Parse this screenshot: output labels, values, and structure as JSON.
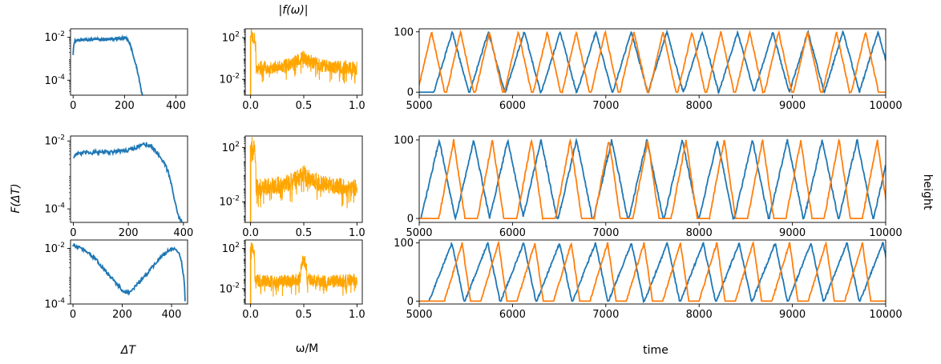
{
  "labels": {
    "col1_ylabel": "F(ΔT)",
    "col1_xlabel": "ΔT",
    "col2_title": "|f(ω)|",
    "col2_xlabel": "ω/M",
    "col3_xlabel": "time",
    "col3_ylabel": "height"
  },
  "colors": {
    "blue": "#1f77b4",
    "orange": "#ffa500",
    "orange2": "#ff7f0e"
  },
  "chart_data": [
    {
      "type": "line",
      "row": 0,
      "col": 0,
      "yscale": "log",
      "xlim": [
        -10,
        445
      ],
      "ylim": [
        2e-05,
        0.025
      ],
      "xticks": [
        0,
        200,
        400
      ],
      "xtick_labels": [
        "0",
        "200",
        "400"
      ],
      "yticks": [
        0.0001,
        0.01
      ],
      "ytick_labels": [
        "10^-4",
        "10^-2"
      ],
      "x": [
        0,
        5,
        20,
        50,
        100,
        150,
        180,
        200,
        210,
        220,
        230,
        240,
        250,
        258,
        265,
        270
      ],
      "y": [
        0.0016,
        0.0065,
        0.0075,
        0.0078,
        0.008,
        0.0083,
        0.009,
        0.0095,
        0.008,
        0.005,
        0.002,
        0.0007,
        0.00025,
        8e-05,
        3e-05,
        2e-05
      ]
    },
    {
      "type": "line",
      "row": 0,
      "col": 1,
      "yscale": "log",
      "spectrum": true,
      "xlim": [
        -0.05,
        1.05
      ],
      "ylim": [
        0.0003,
        700
      ],
      "xticks": [
        0,
        0.5,
        1
      ],
      "xtick_labels": [
        "0.0",
        "0.5",
        "1.0"
      ],
      "yticks": [
        0.01,
        100
      ],
      "ytick_labels": [
        "10^-2",
        "10^2"
      ],
      "x": [
        0,
        0.05,
        0.15,
        0.25,
        0.35,
        0.42,
        0.47,
        0.5,
        0.53,
        0.58,
        0.65,
        0.75,
        0.85,
        0.95,
        1.0
      ],
      "y": [
        150,
        0.08,
        0.09,
        0.1,
        0.15,
        0.3,
        0.5,
        0.9,
        0.5,
        0.3,
        0.15,
        0.1,
        0.09,
        0.08,
        0.08
      ]
    },
    {
      "type": "line",
      "row": 0,
      "col": 2,
      "xlim": [
        5000,
        10000
      ],
      "ylim": [
        -5,
        105
      ],
      "xticks": [
        5000,
        6000,
        7000,
        8000,
        9000,
        10000
      ],
      "xtick_labels": [
        "5000",
        "6000",
        "7000",
        "8000",
        "9000",
        "10000"
      ],
      "yticks": [
        0,
        100
      ],
      "ytick_labels": [
        "0",
        "100"
      ],
      "series": [
        {
          "color": "blue",
          "peaks": [
            5356,
            5741,
            6126,
            6510,
            6893,
            7274,
            7655,
            8034,
            8413,
            8790,
            9167,
            9543,
            9918
          ],
          "rise": 200,
          "fall": 175
        },
        {
          "color": "orange2",
          "peaks": [
            5133,
            5443,
            5753,
            6063,
            6373,
            6683,
            6993,
            7303,
            7613,
            7923,
            8233,
            8543,
            8853,
            9163,
            9473,
            9783
          ],
          "rise": 150,
          "fall": 140
        }
      ]
    },
    {
      "type": "line",
      "row": 1,
      "col": 0,
      "yscale": "log",
      "xlim": [
        -10,
        415
      ],
      "ylim": [
        4e-05,
        0.014
      ],
      "xticks": [
        0,
        200,
        400
      ],
      "xtick_labels": [
        "0",
        "200",
        "400"
      ],
      "yticks": [
        0.0001,
        0.01
      ],
      "ytick_labels": [
        "10^-4",
        "10^-2"
      ],
      "x": [
        0,
        10,
        50,
        100,
        150,
        200,
        230,
        250,
        265,
        280,
        300,
        320,
        340,
        355,
        365,
        375,
        385,
        395,
        400
      ],
      "y": [
        0.0032,
        0.0042,
        0.0045,
        0.0046,
        0.0048,
        0.0055,
        0.0065,
        0.0075,
        0.008,
        0.0072,
        0.005,
        0.003,
        0.0015,
        0.0006,
        0.0002,
        0.0001,
        5e-05,
        4e-05,
        4e-05
      ]
    },
    {
      "type": "line",
      "row": 1,
      "col": 1,
      "yscale": "log",
      "spectrum": true,
      "xlim": [
        -0.05,
        1.05
      ],
      "ylim": [
        0.0003,
        700
      ],
      "xticks": [
        0,
        0.5,
        1
      ],
      "xtick_labels": [
        "0.0",
        "0.5",
        "1.0"
      ],
      "yticks": [
        0.01,
        100
      ],
      "ytick_labels": [
        "10^-2",
        "10^2"
      ],
      "x": [
        0,
        0.05,
        0.15,
        0.25,
        0.35,
        0.42,
        0.47,
        0.5,
        0.53,
        0.58,
        0.65,
        0.75,
        0.85,
        0.95,
        1.0
      ],
      "y": [
        150,
        0.07,
        0.08,
        0.1,
        0.15,
        0.25,
        0.45,
        0.9,
        0.45,
        0.25,
        0.15,
        0.1,
        0.08,
        0.07,
        0.07
      ]
    },
    {
      "type": "line",
      "row": 1,
      "col": 2,
      "xlim": [
        5000,
        10000
      ],
      "ylim": [
        -5,
        105
      ],
      "xticks": [
        5000,
        6000,
        7000,
        8000,
        9000,
        10000
      ],
      "xtick_labels": [
        "5000",
        "6000",
        "7000",
        "8000",
        "9000",
        "10000"
      ],
      "yticks": [
        0,
        100
      ],
      "ytick_labels": [
        "0",
        "100"
      ],
      "series": [
        {
          "color": "blue",
          "peaks": [
            5215,
            5585,
            5950,
            6306,
            6686,
            7064,
            7442,
            7820,
            8196,
            8572,
            8946,
            9320,
            9693,
            10065
          ],
          "rise": 195,
          "fall": 170
        },
        {
          "color": "orange2",
          "peaks": [
            5370,
            5785,
            6205,
            6620,
            7035,
            7450,
            7860,
            8270,
            8680,
            9090,
            9500,
            9910
          ],
          "rise": 160,
          "fall": 120
        }
      ]
    },
    {
      "type": "line",
      "row": 2,
      "col": 0,
      "yscale": "log",
      "xlim": [
        -10,
        465
      ],
      "ylim": [
        0.0001,
        0.02
      ],
      "xticks": [
        0,
        200,
        400
      ],
      "xtick_labels": [
        "0",
        "200",
        "400"
      ],
      "yticks": [
        0.0001,
        0.01
      ],
      "ytick_labels": [
        "10^-4",
        "10^-2"
      ],
      "x": [
        0,
        20,
        50,
        80,
        110,
        140,
        170,
        200,
        220,
        240,
        270,
        300,
        330,
        360,
        390,
        410,
        425,
        435,
        445,
        455
      ],
      "y": [
        0.013,
        0.011,
        0.0085,
        0.005,
        0.0025,
        0.0012,
        0.0006,
        0.0003,
        0.00025,
        0.0003,
        0.0006,
        0.0012,
        0.0025,
        0.005,
        0.0085,
        0.01,
        0.0085,
        0.005,
        0.0015,
        0.00012
      ]
    },
    {
      "type": "line",
      "row": 2,
      "col": 1,
      "yscale": "log",
      "spectrum": true,
      "xlim": [
        -0.05,
        1.05
      ],
      "ylim": [
        0.0003,
        700
      ],
      "xticks": [
        0,
        0.5,
        1
      ],
      "xtick_labels": [
        "0.0",
        "0.5",
        "1.0"
      ],
      "yticks": [
        0.01,
        100
      ],
      "ytick_labels": [
        "10^-2",
        "10^2"
      ],
      "x": [
        0,
        0.04,
        0.1,
        0.2,
        0.3,
        0.4,
        0.47,
        0.5,
        0.53,
        0.6,
        0.7,
        0.8,
        0.9,
        1.0
      ],
      "y": [
        150,
        0.05,
        0.04,
        0.035,
        0.035,
        0.04,
        0.06,
        5,
        0.06,
        0.04,
        0.035,
        0.035,
        0.04,
        0.04
      ]
    },
    {
      "type": "line",
      "row": 2,
      "col": 2,
      "xlim": [
        5000,
        10000
      ],
      "ylim": [
        -5,
        105
      ],
      "xticks": [
        5000,
        6000,
        7000,
        8000,
        9000,
        10000
      ],
      "xtick_labels": [
        "5000",
        "6000",
        "7000",
        "8000",
        "9000",
        "10000"
      ],
      "yticks": [
        0,
        100
      ],
      "ytick_labels": [
        "0",
        "100"
      ],
      "series": [
        {
          "color": "blue",
          "peaks": [
            5350,
            5735,
            6120,
            6505,
            6890,
            7275,
            7660,
            8045,
            8430,
            8815,
            9200,
            9585,
            9970
          ],
          "rise": 245,
          "fall": 130
        },
        {
          "color": "orange2",
          "peaks": [
            5460,
            5850,
            6240,
            6630,
            7020,
            7410,
            7800,
            8190,
            8580,
            8970,
            9360,
            9750
          ],
          "rise": 190,
          "fall": 90
        }
      ]
    }
  ]
}
